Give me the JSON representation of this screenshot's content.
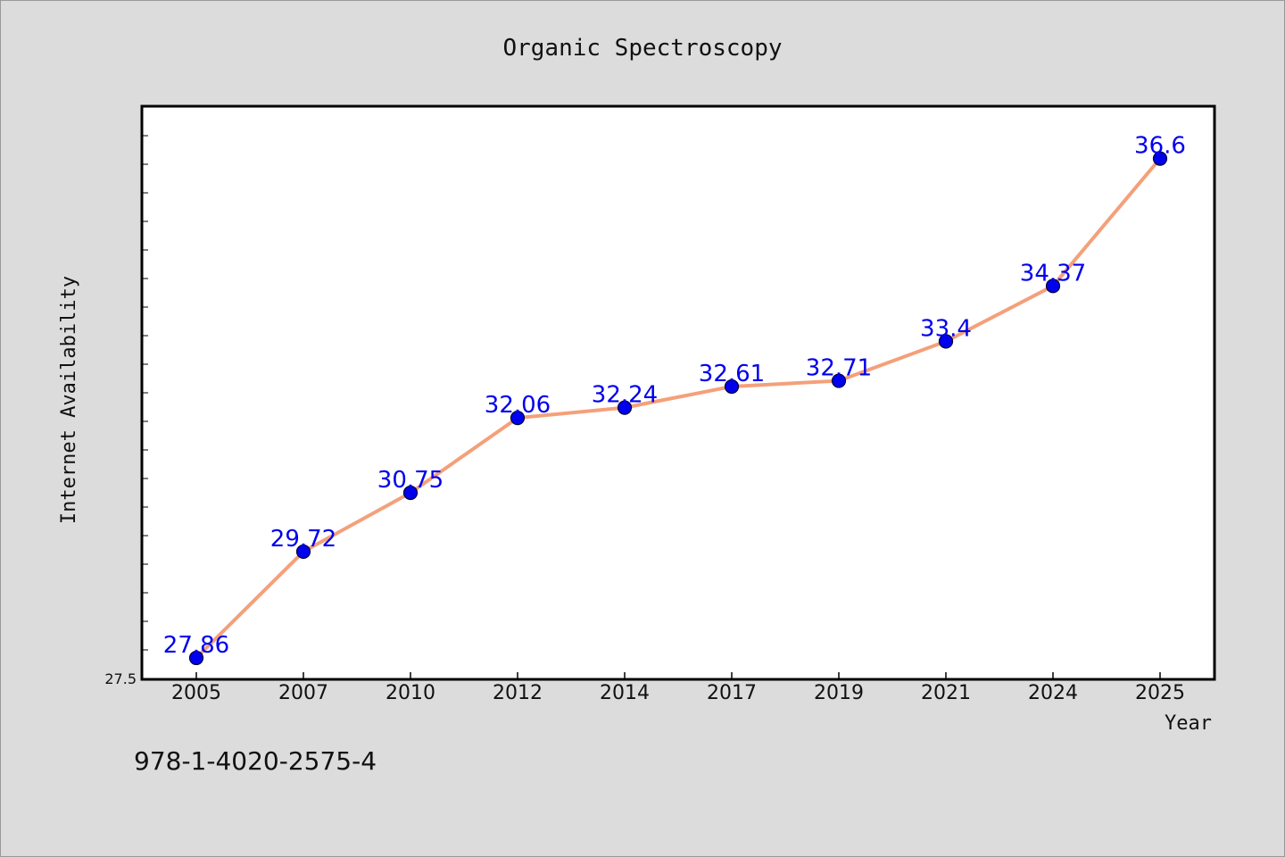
{
  "chart_data": {
    "type": "line",
    "title": "Organic Spectroscopy",
    "xlabel": "Year",
    "ylabel": "Internet Availability",
    "categories": [
      "2005",
      "2007",
      "2010",
      "2012",
      "2014",
      "2017",
      "2019",
      "2021",
      "2024",
      "2025"
    ],
    "values": [
      27.86,
      29.72,
      30.75,
      32.06,
      32.24,
      32.61,
      32.71,
      33.4,
      34.37,
      36.6
    ],
    "data_labels": [
      "27.86",
      "29.72",
      "30.75",
      "32.06",
      "32.24",
      "32.61",
      "32.71",
      "33.4",
      "34.37",
      "36.6"
    ],
    "ytick_labels": [
      "27.5"
    ],
    "ylim": [
      27.5,
      37.5
    ],
    "grid": false,
    "line_color": "#f4a07a",
    "marker_color": "#0000ee",
    "label_color": "#0000ee",
    "background_color": "#dcdcdc",
    "plot_background": "#ffffff"
  },
  "caption": "978-1-4020-2575-4"
}
